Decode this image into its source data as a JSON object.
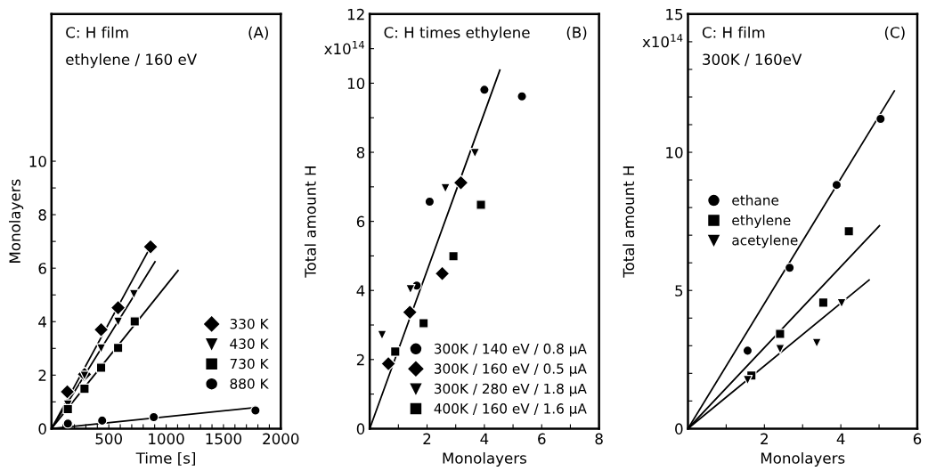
{
  "chart_data": [
    {
      "type": "scatter",
      "title": "(A)",
      "annotations": [
        "C: H film",
        "ethylene / 160 eV"
      ],
      "xlabel": "Time [s]",
      "ylabel": "Monolayers",
      "xlim": [
        0,
        2000
      ],
      "ylim": [
        0,
        15.5
      ],
      "xticks": [
        {
          "value": 100,
          "label": null
        },
        {
          "value": 200,
          "label": null
        },
        {
          "value": 300,
          "label": null
        },
        {
          "value": 400,
          "label": null
        },
        500,
        {
          "value": 600,
          "label": null
        },
        {
          "value": 700,
          "label": null
        },
        {
          "value": 800,
          "label": null
        },
        {
          "value": 900,
          "label": null
        },
        1000,
        {
          "value": 1100,
          "label": null
        },
        {
          "value": 1200,
          "label": null
        },
        {
          "value": 1300,
          "label": null
        },
        {
          "value": 1400,
          "label": null
        },
        1500,
        {
          "value": 1600,
          "label": null
        },
        {
          "value": 1700,
          "label": null
        },
        {
          "value": 1800,
          "label": null
        },
        {
          "value": 1900,
          "label": null
        },
        2000
      ],
      "yticks": [
        0,
        {
          "value": 1,
          "label": null
        },
        2,
        {
          "value": 3,
          "label": null
        },
        4,
        {
          "value": 5,
          "label": null
        },
        6,
        {
          "value": 7,
          "label": null
        },
        8,
        {
          "value": 9,
          "label": null
        },
        10
      ],
      "legend": "lower right",
      "grid": false,
      "series": [
        {
          "name": "330 K",
          "color": "#000000",
          "marker": "diamond",
          "x": [
            138,
            288,
            433,
            581,
            864
          ],
          "values": [
            1.38,
            2.03,
            3.7,
            4.52,
            6.8
          ]
        },
        {
          "name": "430 K",
          "color": "#000000",
          "marker": "triangle",
          "x": [
            143,
            288,
            433,
            581,
            719
          ],
          "values": [
            0.9,
            1.98,
            3.0,
            4.0,
            5.03
          ]
        },
        {
          "name": "730 K",
          "color": "#000000",
          "marker": "square",
          "x": [
            143,
            288,
            433,
            581,
            726
          ],
          "values": [
            0.73,
            1.49,
            2.28,
            3.02,
            4.01
          ]
        },
        {
          "name": "880 K",
          "color": "#000000",
          "marker": "circle",
          "x": [
            143,
            442,
            892,
            1779
          ],
          "values": [
            0.19,
            0.3,
            0.43,
            0.68
          ]
        },
        {
          "type": "line",
          "color": "#000000",
          "x": [
            0,
            864
          ],
          "values": [
            0,
            6.8
          ]
        },
        {
          "type": "line",
          "color": "#000000",
          "x": [
            0,
            903
          ],
          "values": [
            0,
            6.24
          ]
        },
        {
          "type": "line",
          "color": "#000000",
          "x": [
            0,
            1104
          ],
          "values": [
            0,
            5.91
          ]
        },
        {
          "type": "line",
          "color": "#000000",
          "x": [
            0,
            1779
          ],
          "values": [
            0,
            0.79
          ]
        }
      ]
    },
    {
      "type": "scatter",
      "title": "(B)",
      "annotations": [
        "C: H times ethylene"
      ],
      "xlabel": "Monolayers",
      "ylabel": "Total amount H",
      "xlim": [
        0,
        8
      ],
      "ylim": [
        0,
        12
      ],
      "xticks": [
        {
          "value": 1,
          "label": null
        },
        2,
        {
          "value": 3,
          "label": null
        },
        4,
        {
          "value": 5,
          "label": null
        },
        6,
        {
          "value": 7,
          "label": null
        },
        8
      ],
      "yticks": [
        0,
        {
          "value": 1,
          "label": null
        },
        2,
        {
          "value": 3,
          "label": null
        },
        4,
        {
          "value": 5,
          "label": null
        },
        6,
        {
          "value": 7,
          "label": null
        },
        8,
        {
          "value": 9,
          "label": null
        },
        10,
        {
          "value": 11,
          "label": "x10$^{14}$"
        },
        12
      ],
      "legend": "lower right",
      "grid": false,
      "series": [
        {
          "name": "300K / 140 eV / 0.8 μA",
          "color": "#000000",
          "marker": "circle",
          "x": [
            1.64,
            2.09,
            4.0,
            5.31
          ],
          "values": [
            4.14,
            6.57,
            9.81,
            9.62
          ]
        },
        {
          "name": "300K / 160 eV / 0.5 μA",
          "color": "#000000",
          "marker": "diamond",
          "x": [
            0.65,
            1.4,
            2.53,
            3.18
          ],
          "values": [
            1.88,
            3.37,
            4.49,
            7.12
          ]
        },
        {
          "name": "300K / 280 eV / 1.8 μA",
          "color": "#000000",
          "marker": "triangle",
          "x": [
            0.43,
            1.42,
            2.64,
            3.67
          ],
          "values": [
            2.71,
            4.04,
            6.96,
            7.98
          ]
        },
        {
          "name": "400K / 160 eV / 1.6 μA",
          "color": "#000000",
          "marker": "square",
          "x": [
            0.89,
            1.88,
            2.92,
            3.88
          ],
          "values": [
            2.23,
            3.05,
            4.99,
            6.48
          ]
        },
        {
          "type": "line",
          "color": "#000000",
          "x": [
            0,
            4.54
          ],
          "values": [
            0,
            10.38
          ]
        }
      ]
    },
    {
      "type": "scatter",
      "title": "(C)",
      "annotations": [
        "C: H film",
        "300K / 160eV"
      ],
      "xlabel": "Monolayers",
      "ylabel": "Total amount H",
      "xlim": [
        0,
        6
      ],
      "ylim": [
        0,
        15
      ],
      "xticks": [
        {
          "value": 1,
          "label": null
        },
        2,
        {
          "value": 3,
          "label": null
        },
        4,
        {
          "value": 5,
          "label": null
        },
        6
      ],
      "yticks": [
        0,
        {
          "value": 1,
          "label": null
        },
        {
          "value": 2,
          "label": null
        },
        {
          "value": 3,
          "label": null
        },
        {
          "value": 4,
          "label": null
        },
        5,
        {
          "value": 6,
          "label": null
        },
        {
          "value": 7,
          "label": null
        },
        {
          "value": 8,
          "label": null
        },
        {
          "value": 9,
          "label": null
        },
        10,
        {
          "value": 11,
          "label": null
        },
        {
          "value": 12,
          "label": null
        },
        {
          "value": 13,
          "label": null
        },
        {
          "value": 14,
          "label": "x10$^{14}$"
        },
        15
      ],
      "legend": "center left",
      "grid": false,
      "series": [
        {
          "name": "ethane",
          "color": "#000000",
          "marker": "circle",
          "x": [
            1.56,
            2.66,
            3.89,
            5.04
          ],
          "values": [
            2.82,
            5.82,
            8.82,
            11.21
          ]
        },
        {
          "name": "ethylene",
          "color": "#000000",
          "marker": "square",
          "x": [
            1.66,
            2.41,
            3.54,
            4.21
          ],
          "values": [
            1.92,
            3.43,
            4.56,
            7.14
          ]
        },
        {
          "name": "acetylene",
          "color": "#000000",
          "marker": "triangle",
          "x": [
            1.56,
            2.41,
            3.37,
            4.02
          ],
          "values": [
            1.76,
            2.88,
            3.1,
            4.54
          ]
        },
        {
          "type": "line",
          "color": "#000000",
          "x": [
            0,
            5.4
          ],
          "values": [
            0,
            12.22
          ]
        },
        {
          "type": "line",
          "color": "#000000",
          "x": [
            0,
            5.01
          ],
          "values": [
            0,
            7.34
          ]
        },
        {
          "type": "line",
          "color": "#000000",
          "x": [
            0,
            4.74
          ],
          "values": [
            0,
            5.38
          ]
        }
      ]
    }
  ]
}
